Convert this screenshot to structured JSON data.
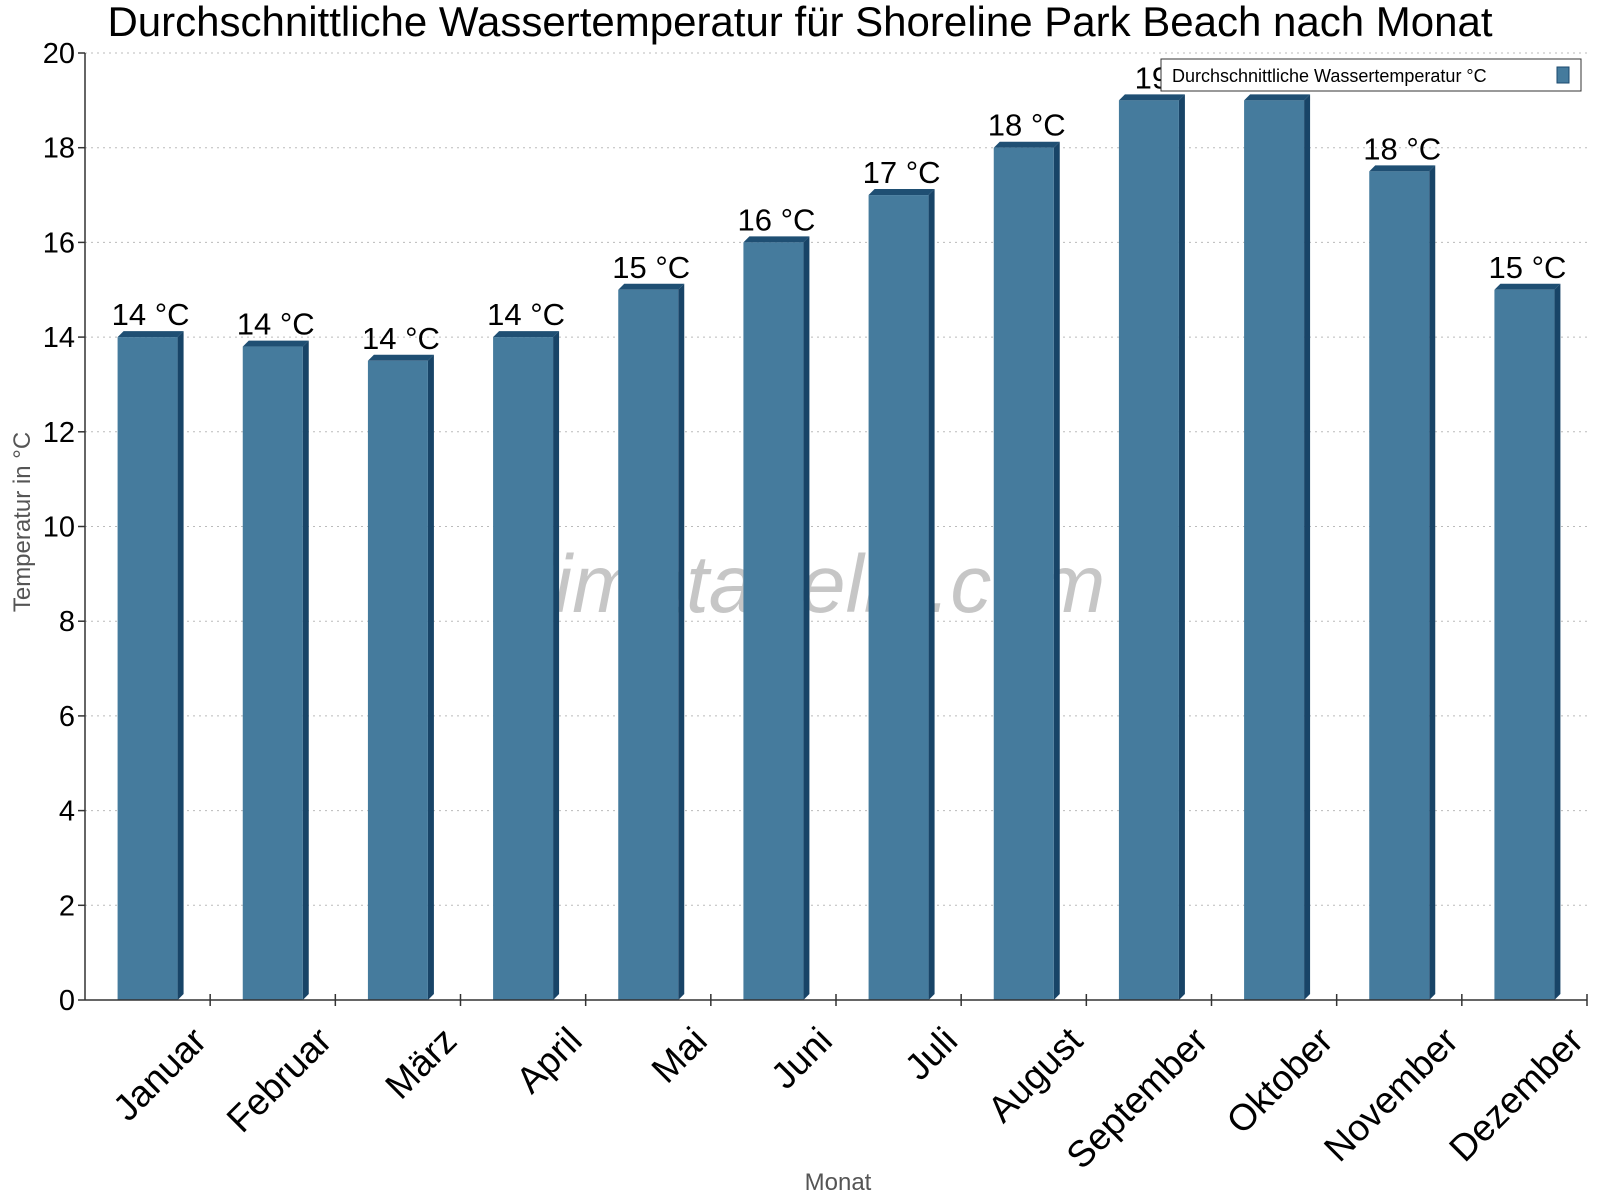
{
  "chart_data": {
    "type": "bar",
    "title": "Durchschnittliche Wassertemperatur für Shoreline Park Beach nach Monat",
    "xlabel": "Monat",
    "ylabel": "Temperatur in °C",
    "ylim": [
      0,
      20
    ],
    "yticks": [
      0,
      2,
      4,
      6,
      8,
      10,
      12,
      14,
      16,
      18,
      20
    ],
    "categories": [
      "Januar",
      "Februar",
      "März",
      "April",
      "Mai",
      "Juni",
      "Juli",
      "August",
      "September",
      "Oktober",
      "November",
      "Dezember"
    ],
    "values": [
      14,
      13.8,
      13.5,
      14,
      15,
      16,
      17,
      18,
      19,
      19,
      17.5,
      15
    ],
    "data_labels": [
      "14 °C",
      "14 °C",
      "14 °C",
      "14 °C",
      "15 °C",
      "16 °C",
      "17 °C",
      "18 °C",
      "19",
      "",
      "18 °C",
      "15 °C"
    ],
    "series": [
      {
        "name": "Durchschnittliche Wassertemperatur °C",
        "color": "#457b9d"
      }
    ],
    "legend_position": "top-right",
    "grid": true
  },
  "watermark": "klimatabelle.com"
}
